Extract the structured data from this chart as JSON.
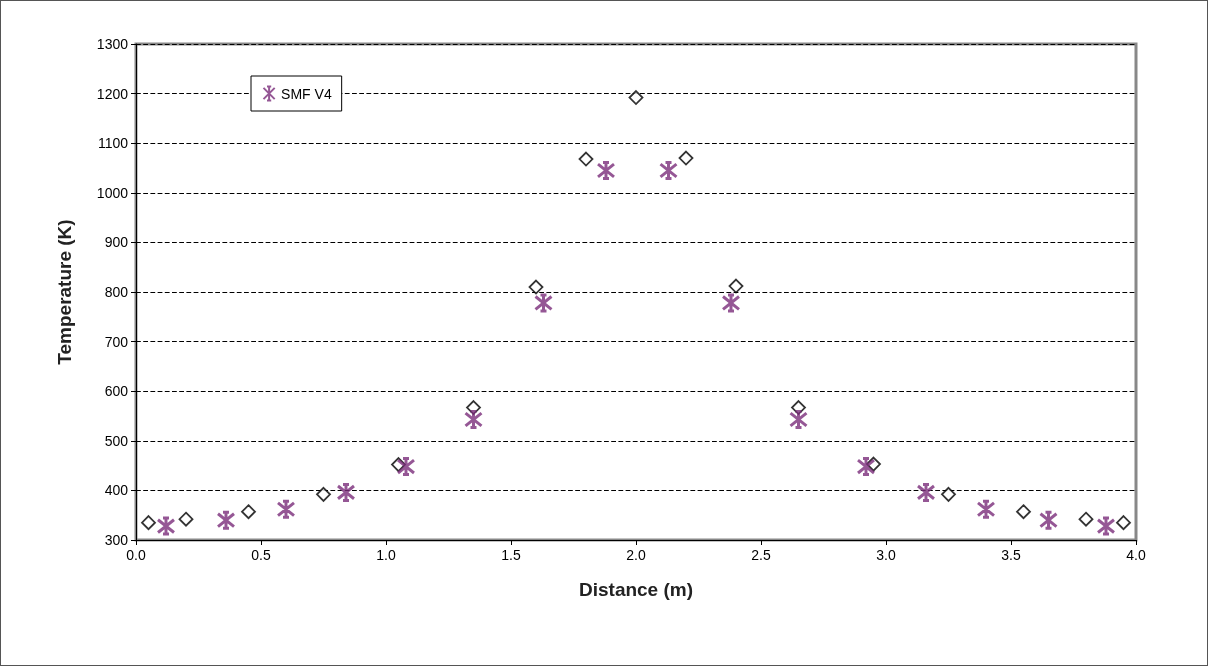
{
  "chart_data": {
    "type": "scatter",
    "xlabel": "Distance (m)",
    "ylabel": "Temperature (K)",
    "xlim": [
      0,
      4
    ],
    "xticks": [
      {
        "value": 0,
        "label": "0.0"
      },
      {
        "value": 0.5,
        "label": "0.5"
      },
      {
        "value": 1,
        "label": "1.0"
      },
      {
        "value": 1.5,
        "label": "1.5"
      },
      {
        "value": 2,
        "label": "2.0"
      },
      {
        "value": 2.5,
        "label": "2.5"
      },
      {
        "value": 3,
        "label": "3.0"
      },
      {
        "value": 3.5,
        "label": "3.5"
      },
      {
        "value": 4,
        "label": "4.0"
      }
    ],
    "ylim": [
      300,
      1300
    ],
    "yticks": [
      300,
      400,
      500,
      600,
      700,
      800,
      900,
      1000,
      1100,
      1200,
      1300
    ],
    "grid": "y",
    "legend": "top left",
    "series": [
      {
        "color": "#000000",
        "marker": "diamond",
        "x": [
          0.05,
          0.2,
          0.45,
          0.75,
          1.05,
          1.35,
          1.6,
          1.8,
          2.0,
          2.2,
          2.4,
          2.65,
          2.95,
          3.25,
          3.55,
          3.8,
          3.95
        ],
        "values": [
          335,
          342,
          357,
          392,
          452,
          567,
          810,
          1068,
          1192,
          1070,
          812,
          567,
          453,
          392,
          357,
          342,
          335
        ]
      },
      {
        "name": "SMF V4",
        "color": "#7b2d7b",
        "marker": "cross",
        "x": [
          0.12,
          0.36,
          0.6,
          0.84,
          1.08,
          1.35,
          1.63,
          1.88,
          2.13,
          2.38,
          2.65,
          2.92,
          3.16,
          3.4,
          3.65,
          3.88
        ],
        "values": [
          328,
          340,
          362,
          396,
          448,
          543,
          778,
          1045,
          1045,
          778,
          543,
          448,
          396,
          362,
          340,
          328
        ]
      }
    ]
  }
}
